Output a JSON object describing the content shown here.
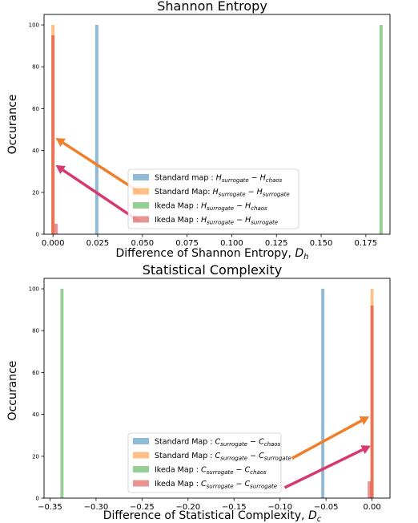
{
  "chart_data": [
    {
      "type": "bar",
      "title": "Shannon Entropy",
      "xlabel": "Difference of Shannon Entropy, ",
      "xlabel_sym": "D",
      "xlabel_sub": "h",
      "ylabel": "Occurance",
      "xlim": [
        -0.005,
        0.1885
      ],
      "ylim": [
        0,
        105
      ],
      "xticks": [
        0.0,
        0.025,
        0.05,
        0.075,
        0.1,
        0.125,
        0.15,
        0.175
      ],
      "xtick_labels": [
        "0.000",
        "0.025",
        "0.050",
        "0.075",
        "0.100",
        "0.125",
        "0.150",
        "0.175"
      ],
      "yticks": [
        0,
        20,
        40,
        60,
        80,
        100
      ],
      "ytick_labels": [
        "0",
        "20",
        "40",
        "60",
        "80",
        "100"
      ],
      "bar_width": 0.0018,
      "grid": false,
      "legend_position": "lower-center",
      "series": [
        {
          "name": "Standard map : ",
          "sym": "H",
          "sub1": "surrogate",
          "sub2": "chaos",
          "color": "#1f77b4",
          "opacity": 0.5,
          "bars": [
            {
              "x": 0.0245,
              "y": 100
            }
          ]
        },
        {
          "name": "Standard Map: ",
          "sym": "H",
          "sub1": "surrogate",
          "sub2": "surrogate",
          "color": "#ff7f0e",
          "opacity": 0.5,
          "bars": [
            {
              "x": 0.0,
              "y": 100
            }
          ]
        },
        {
          "name": "Ikeda Map : ",
          "sym": "H",
          "sub1": "surrogate",
          "sub2": "chaos",
          "color": "#2ca02c",
          "opacity": 0.5,
          "bars": [
            {
              "x": 0.1835,
              "y": 100
            }
          ]
        },
        {
          "name": "Ikeda Map : ",
          "sym": "H",
          "sub1": "surrogate",
          "sub2": "surrogate",
          "color": "#d62728",
          "opacity": 0.5,
          "bars": [
            {
              "x": 0.0,
              "y": 95
            },
            {
              "x": 0.0018,
              "y": 5
            }
          ]
        }
      ],
      "arrows": [
        {
          "from": [
            0.0485,
            20
          ],
          "to": [
            0.0015,
            46
          ],
          "color": "#ef7f2a"
        },
        {
          "from": [
            0.0485,
            6
          ],
          "to": [
            0.0015,
            33
          ],
          "color": "#d63a6b"
        }
      ]
    },
    {
      "type": "bar",
      "title": "Statistical Complexity",
      "xlabel": "Difference of Statistical Complexity, ",
      "xlabel_sym": "D",
      "xlabel_sub": "c",
      "ylabel": "Occurance",
      "xlim": [
        -0.3565,
        0.0195
      ],
      "ylim": [
        0,
        105
      ],
      "xticks": [
        -0.35,
        -0.3,
        -0.25,
        -0.2,
        -0.15,
        -0.1,
        -0.05,
        0.0
      ],
      "xtick_labels": [
        "−0.35",
        "−0.30",
        "−0.25",
        "−0.20",
        "−0.15",
        "−0.10",
        "−0.05",
        "0.00"
      ],
      "yticks": [
        0,
        20,
        40,
        60,
        80,
        100
      ],
      "ytick_labels": [
        "0",
        "20",
        "40",
        "60",
        "80",
        "100"
      ],
      "bar_width": 0.0034,
      "grid": false,
      "legend_position": "lower-center",
      "series": [
        {
          "name": "Standard Map : ",
          "sym": "C",
          "sub1": "surrogate",
          "sub2": "chaos",
          "color": "#1f77b4",
          "opacity": 0.5,
          "bars": [
            {
              "x": -0.0535,
              "y": 100
            }
          ]
        },
        {
          "name": "Standard Map : ",
          "sym": "C",
          "sub1": "surrogate",
          "sub2": "surrogate",
          "color": "#ff7f0e",
          "opacity": 0.5,
          "bars": [
            {
              "x": 0.0,
              "y": 100
            }
          ]
        },
        {
          "name": "Ikeda Map : ",
          "sym": "C",
          "sub1": "surrogate",
          "sub2": "chaos",
          "color": "#2ca02c",
          "opacity": 0.5,
          "bars": [
            {
              "x": -0.337,
              "y": 100
            }
          ]
        },
        {
          "name": "Ikeda Map : ",
          "sym": "C",
          "sub1": "surrogate",
          "sub2": "surrogate",
          "color": "#d62728",
          "opacity": 0.5,
          "bars": [
            {
              "x": 0.0,
              "y": 92
            },
            {
              "x": -0.003,
              "y": 8
            }
          ]
        }
      ],
      "arrows": [
        {
          "from": [
            -0.087,
            19
          ],
          "to": [
            -0.003,
            39
          ],
          "color": "#ef7f2a"
        },
        {
          "from": [
            -0.095,
            5
          ],
          "to": [
            -0.0015,
            25
          ],
          "color": "#d63a6b"
        }
      ]
    }
  ]
}
